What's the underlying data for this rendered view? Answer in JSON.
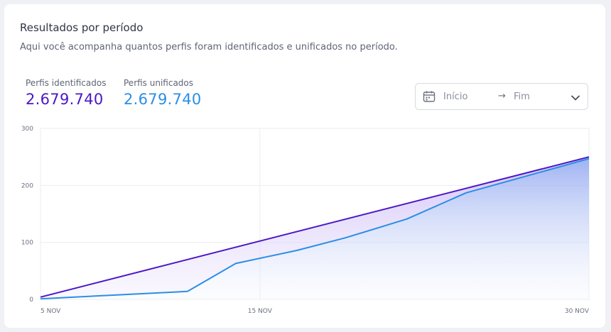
{
  "header": {
    "title": "Resultados por período",
    "subtitle": "Aqui você acompanha quantos perfis foram identificados e unificados no período."
  },
  "metrics": [
    {
      "label": "Perfis identificados",
      "value": "2.679.740"
    },
    {
      "label": "Perfis unificados",
      "value": "2.679.740"
    }
  ],
  "date_range": {
    "start_placeholder": "Início",
    "arrow": "→",
    "end_placeholder": "Fim",
    "calendar_icon": "calendar-icon",
    "chevron_icon": "chevron-down-icon"
  },
  "colors": {
    "identified": "#4b17c7",
    "unified": "#2b8ee6"
  },
  "chart_data": {
    "type": "area",
    "x_range": [
      5,
      30
    ],
    "x_ticks": [
      {
        "x": 5,
        "label": "5 NOV"
      },
      {
        "x": 15,
        "label": "15 NOV"
      },
      {
        "x": 30,
        "label": "30 NOV"
      }
    ],
    "ylim": [
      0,
      300
    ],
    "y_ticks": [
      0,
      100,
      200,
      300
    ],
    "grid": true,
    "series": [
      {
        "name": "Perfis identificados",
        "color": "#4b17c7",
        "points": [
          [
            5,
            4
          ],
          [
            30,
            250
          ]
        ]
      },
      {
        "name": "Perfis unificados",
        "color": "#2b8ee6",
        "points": [
          [
            5,
            1
          ],
          [
            11.7,
            14
          ],
          [
            13.9,
            63
          ],
          [
            16.7,
            86
          ],
          [
            18.9,
            108
          ],
          [
            21.7,
            141
          ],
          [
            24.4,
            187
          ],
          [
            30,
            247
          ]
        ]
      }
    ]
  }
}
